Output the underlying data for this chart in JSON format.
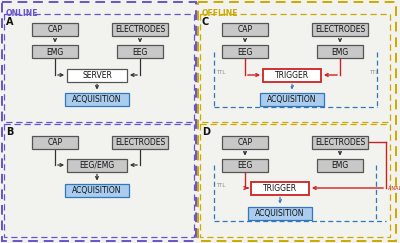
{
  "bg_color": "#f2f2ee",
  "online_label": "ONLINE",
  "offline_label": "OFFLINE",
  "online_border_color": "#6655cc",
  "offline_border_color": "#ccaa00",
  "box_gray_fill": "#c8c8c8",
  "box_gray_edge": "#555555",
  "box_white_fill": "#ffffff",
  "box_white_edge": "#555555",
  "box_blue_fill": "#aaccee",
  "box_blue_edge": "#3377bb",
  "box_red_edge": "#cc2222",
  "arrow_black": "#333333",
  "arrow_blue": "#3377bb",
  "arrow_red": "#cc2222",
  "text_dark": "#111111",
  "ttl_color": "#888888",
  "panel_a_label": "A",
  "panel_b_label": "B",
  "panel_c_label": "C",
  "panel_d_label": "D"
}
